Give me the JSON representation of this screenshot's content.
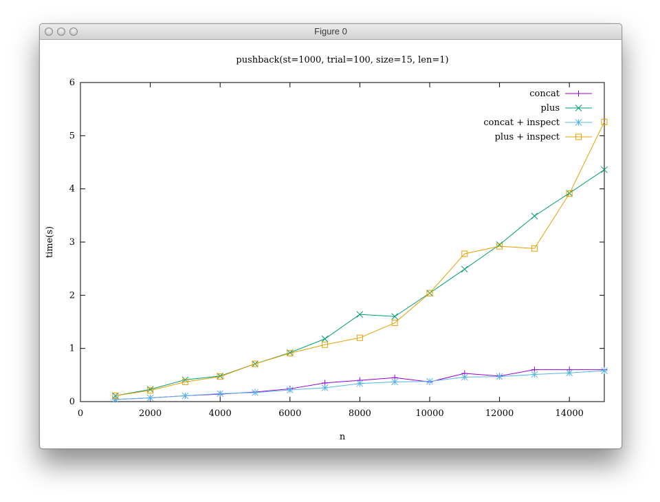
{
  "window": {
    "title": "Figure 0"
  },
  "chart_data": {
    "type": "line",
    "title": "pushback(st=1000, trial=100, size=15, len=1)",
    "xlabel": "n",
    "ylabel": "time(s)",
    "xlim": [
      0,
      15000
    ],
    "ylim": [
      0,
      6
    ],
    "xticks": [
      0,
      2000,
      4000,
      6000,
      8000,
      10000,
      12000,
      14000
    ],
    "yticks": [
      0,
      1,
      2,
      3,
      4,
      5,
      6
    ],
    "grid": false,
    "legend_position": "top-right",
    "x": [
      1000,
      2000,
      3000,
      4000,
      5000,
      6000,
      7000,
      8000,
      9000,
      10000,
      11000,
      12000,
      13000,
      14000,
      15000
    ],
    "series": [
      {
        "name": "concat",
        "color": "#9400d3",
        "marker": "plus",
        "values": [
          0.04,
          0.07,
          0.11,
          0.14,
          0.18,
          0.24,
          0.35,
          0.4,
          0.45,
          0.37,
          0.53,
          0.48,
          0.6,
          0.6,
          0.6
        ]
      },
      {
        "name": "plus",
        "color": "#009e73",
        "marker": "cross",
        "values": [
          0.11,
          0.23,
          0.41,
          0.48,
          0.71,
          0.92,
          1.18,
          1.64,
          1.6,
          2.04,
          2.49,
          2.95,
          3.49,
          3.92,
          4.36
        ]
      },
      {
        "name": "concat + inspect",
        "color": "#56b4e9",
        "marker": "star",
        "values": [
          0.04,
          0.07,
          0.11,
          0.15,
          0.17,
          0.22,
          0.26,
          0.34,
          0.37,
          0.38,
          0.46,
          0.47,
          0.51,
          0.54,
          0.58
        ]
      },
      {
        "name": "plus + inspect",
        "color": "#e69f00",
        "marker": "square",
        "values": [
          0.11,
          0.21,
          0.37,
          0.47,
          0.71,
          0.91,
          1.07,
          1.2,
          1.48,
          2.04,
          2.78,
          2.92,
          2.88,
          3.91,
          5.26
        ]
      }
    ]
  }
}
